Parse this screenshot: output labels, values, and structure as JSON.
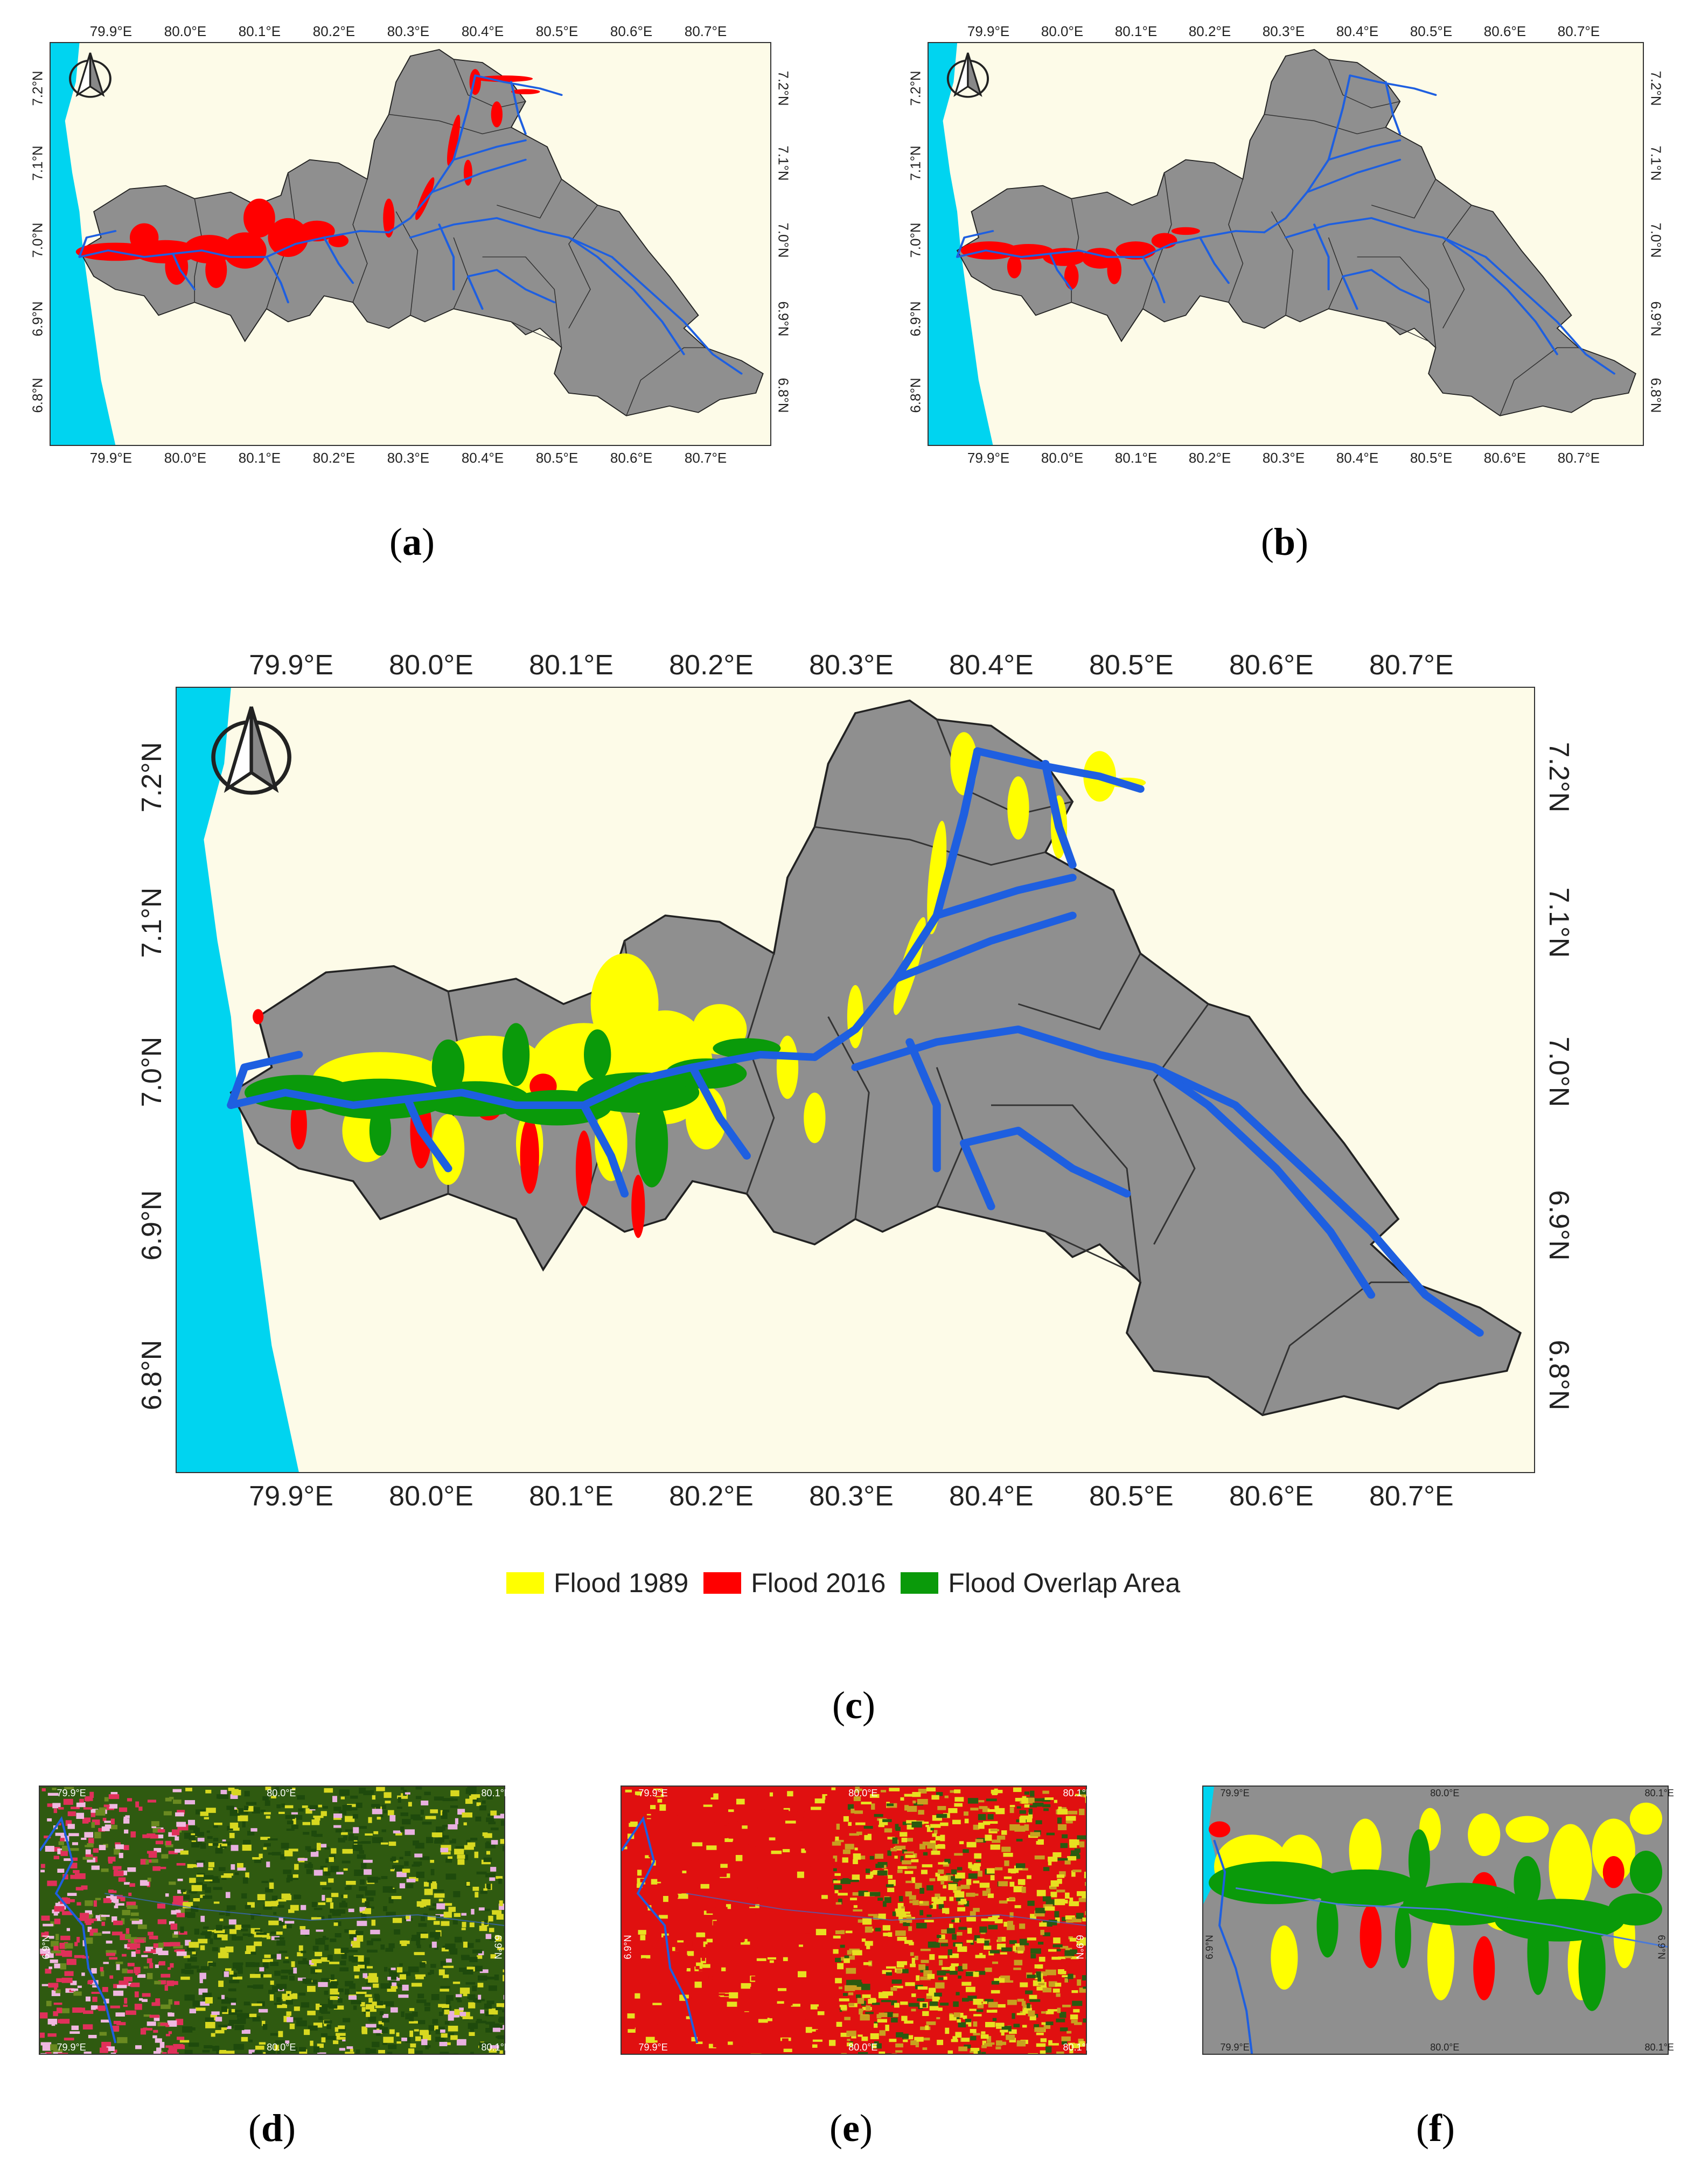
{
  "colors": {
    "sea": "#00d4f0",
    "land": "#fdfbe8",
    "basin": "#8f8f8f",
    "river": "#1e5fe0",
    "flood_1989": "#ffff00",
    "flood_2016": "#ff0000",
    "overlap": "#0a9a0a"
  },
  "lon_labels": [
    "79.9°E",
    "80.0°E",
    "80.1°E",
    "80.2°E",
    "80.3°E",
    "80.4°E",
    "80.5°E",
    "80.6°E",
    "80.7°E"
  ],
  "lat_labels": [
    "7.2°N",
    "7.1°N",
    "7.0°N",
    "6.9°N",
    "6.8°N"
  ],
  "small_lon_labels": [
    "79.9°E",
    "80.0°E",
    "80.1°E"
  ],
  "small_lat_label": "6.9°N",
  "legend": [
    {
      "label": "Flood 1989",
      "color": "#ffff00"
    },
    {
      "label": "Flood 2016",
      "color": "#ff0000"
    },
    {
      "label": "Flood Overlap Area",
      "color": "#0a9a0a"
    }
  ],
  "captions": {
    "a": {
      "open": "(",
      "letter": "a",
      "close": ")"
    },
    "b": {
      "open": "(",
      "letter": "b",
      "close": ")"
    },
    "c": {
      "open": "(",
      "letter": "c",
      "close": ")"
    },
    "d": {
      "open": "(",
      "letter": "d",
      "close": ")"
    },
    "e": {
      "open": "(",
      "letter": "e",
      "close": ")"
    },
    "f": {
      "open": "(",
      "letter": "f",
      "close": ")"
    }
  },
  "icons": {
    "north_arrow": "north-arrow-icon"
  }
}
